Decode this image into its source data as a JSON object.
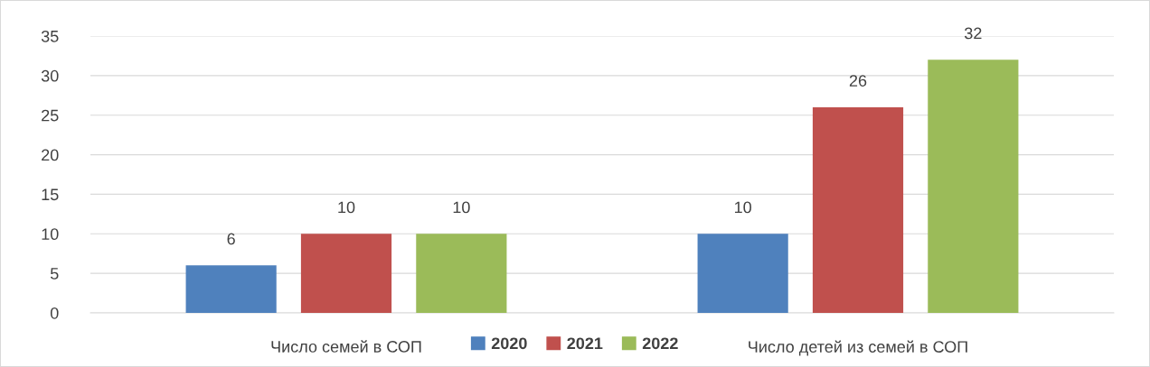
{
  "chart_data": {
    "type": "bar",
    "categories": [
      "Число семей в СОП",
      "Число детей из семей в СОП"
    ],
    "series": [
      {
        "name": "2020",
        "color": "#4f81bd",
        "values": [
          6,
          10
        ]
      },
      {
        "name": "2021",
        "color": "#c0504d",
        "values": [
          10,
          26
        ]
      },
      {
        "name": "2022",
        "color": "#9bbb59",
        "values": [
          10,
          32
        ]
      }
    ],
    "ylim": [
      0,
      35
    ],
    "yticks": [
      0,
      5,
      10,
      15,
      20,
      25,
      30,
      35
    ],
    "grid": "y",
    "legend": "bottom",
    "data_labels": true
  }
}
